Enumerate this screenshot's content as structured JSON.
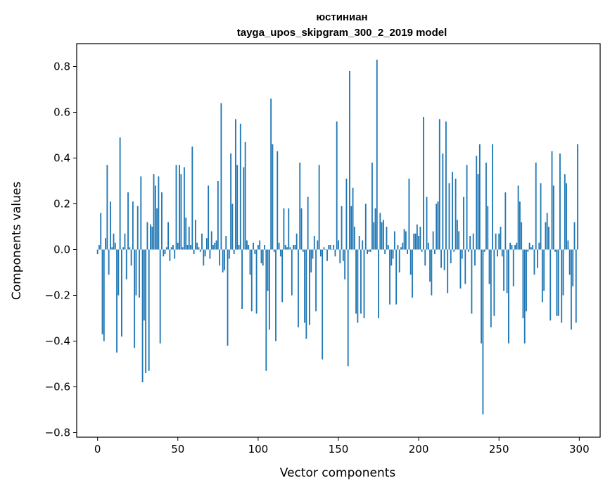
{
  "chart_data": {
    "type": "bar",
    "title": "юстиниан",
    "subtitle": "tayga_upos_skipgram_300_2_2019 model",
    "xlabel": "Vector components",
    "ylabel": "Components values",
    "xlim": [
      -13,
      313
    ],
    "ylim": [
      -0.82,
      0.9
    ],
    "xticks": [
      0,
      50,
      100,
      150,
      200,
      250,
      300
    ],
    "yticks": [
      -0.8,
      -0.6,
      -0.4,
      -0.2,
      0.0,
      0.2,
      0.4,
      0.6,
      0.8
    ],
    "ytick_labels": [
      "−0.8",
      "−0.6",
      "−0.4",
      "−0.2",
      "0.0",
      "0.2",
      "0.4",
      "0.6",
      "0.8"
    ],
    "grid": false,
    "bar_color": "#1f77b4",
    "values": [
      -0.02,
      0.02,
      0.16,
      -0.37,
      -0.4,
      0.05,
      0.37,
      -0.11,
      0.21,
      0.01,
      0.07,
      0.03,
      -0.45,
      -0.2,
      0.49,
      -0.38,
      0.01,
      0.07,
      -0.13,
      0.25,
      0.01,
      -0.07,
      0.21,
      -0.43,
      -0.2,
      0.19,
      -0.21,
      0.32,
      -0.58,
      -0.31,
      -0.54,
      0.12,
      -0.53,
      0.11,
      0.1,
      0.33,
      0.28,
      0.18,
      0.32,
      -0.41,
      0.25,
      -0.03,
      -0.02,
      0.01,
      0.12,
      -0.05,
      0.01,
      0.02,
      -0.04,
      0.37,
      0.03,
      0.37,
      0.33,
      0.01,
      0.36,
      0.14,
      0.02,
      0.1,
      0.02,
      0.45,
      -0.02,
      0.13,
      0.03,
      0.01,
      -0.01,
      0.07,
      -0.07,
      -0.03,
      0.05,
      0.28,
      -0.04,
      0.08,
      0.02,
      0.03,
      0.04,
      0.3,
      -0.07,
      0.64,
      -0.1,
      -0.09,
      0.06,
      -0.42,
      -0.04,
      0.42,
      0.2,
      -0.02,
      0.57,
      0.37,
      0.02,
      0.55,
      -0.26,
      0.36,
      0.47,
      0.04,
      0.02,
      -0.11,
      -0.27,
      0.03,
      -0.02,
      -0.28,
      0.02,
      0.04,
      -0.06,
      -0.07,
      0.02,
      -0.53,
      -0.18,
      -0.35,
      0.66,
      0.46,
      -0.01,
      -0.4,
      0.43,
      0.03,
      -0.03,
      -0.23,
      0.18,
      0.02,
      0.01,
      0.18,
      0.01,
      -0.2,
      0.02,
      0.02,
      0.07,
      -0.34,
      0.38,
      0.18,
      -0.01,
      -0.32,
      -0.39,
      0.23,
      -0.33,
      -0.1,
      -0.04,
      0.06,
      -0.27,
      0.04,
      0.37,
      -0.03,
      -0.48,
      0.01,
      0.0,
      -0.05,
      0.02,
      0.02,
      0.0,
      0.02,
      -0.03,
      0.56,
      0.04,
      -0.06,
      0.19,
      -0.05,
      -0.13,
      0.31,
      -0.51,
      0.78,
      0.19,
      0.27,
      0.1,
      -0.28,
      -0.32,
      0.06,
      -0.28,
      0.04,
      -0.3,
      0.2,
      -0.02,
      -0.01,
      -0.01,
      0.38,
      0.12,
      0.18,
      0.83,
      -0.3,
      0.16,
      0.12,
      0.13,
      -0.02,
      0.1,
      0.02,
      -0.24,
      -0.07,
      -0.04,
      0.08,
      -0.24,
      0.02,
      -0.1,
      0.01,
      0.03,
      0.09,
      0.08,
      -0.02,
      0.31,
      -0.11,
      -0.21,
      0.07,
      0.07,
      0.11,
      0.06,
      0.1,
      -0.01,
      0.58,
      -0.07,
      0.23,
      0.03,
      -0.14,
      -0.2,
      0.08,
      -0.02,
      0.2,
      0.21,
      0.57,
      -0.08,
      0.42,
      -0.09,
      0.56,
      -0.19,
      0.29,
      -0.06,
      0.34,
      -0.01,
      0.31,
      0.13,
      0.08,
      -0.17,
      -0.04,
      0.23,
      -0.15,
      0.37,
      -0.01,
      0.06,
      -0.28,
      0.07,
      -0.07,
      0.41,
      0.33,
      0.46,
      -0.41,
      -0.72,
      -0.01,
      0.38,
      0.19,
      -0.15,
      -0.34,
      0.46,
      -0.29,
      0.07,
      -0.03,
      0.07,
      0.1,
      -0.03,
      -0.18,
      0.25,
      -0.19,
      -0.41,
      0.03,
      0.02,
      -0.16,
      0.02,
      0.03,
      0.28,
      0.21,
      0.12,
      -0.3,
      -0.41,
      -0.27,
      -0.01,
      0.03,
      0.01,
      0.02,
      -0.11,
      0.38,
      -0.08,
      0.03,
      0.29,
      -0.23,
      -0.18,
      0.12,
      0.16,
      0.1,
      -0.31,
      0.43,
      0.28,
      -0.01,
      -0.29,
      -0.29,
      0.42,
      -0.32,
      -0.2,
      0.33,
      0.29,
      0.04,
      -0.11,
      -0.35,
      -0.16,
      0.12,
      -0.32,
      0.46
    ]
  }
}
